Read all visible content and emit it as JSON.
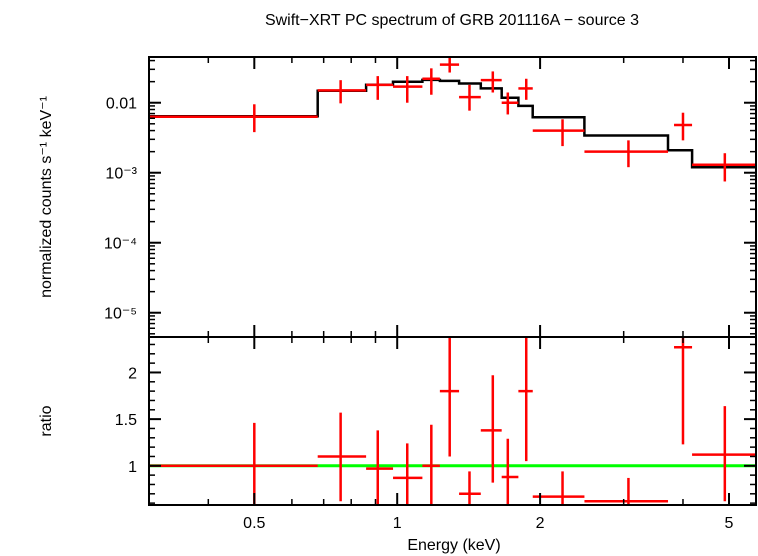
{
  "chart_data": {
    "type": "scatter",
    "title": "Swift−XRT PC spectrum of GRB 201116A − source 3",
    "xlabel": "Energy (keV)",
    "xscale": "log",
    "xlim": [
      0.3,
      5.7
    ],
    "x_tick_labels": [
      {
        "value": 0.5,
        "label": "0.5"
      },
      {
        "value": 1,
        "label": "1"
      },
      {
        "value": 2,
        "label": "2"
      },
      {
        "value": 5,
        "label": "5"
      }
    ],
    "panels": [
      {
        "name": "spectrum",
        "ylabel": "normalized counts s⁻¹ keV⁻¹",
        "yscale": "log",
        "ylim": [
          4.5e-06,
          0.045
        ],
        "y_tick_labels": [
          {
            "value": 0.01,
            "label": "0.01"
          },
          {
            "value": 0.001,
            "label": "10⁻³"
          },
          {
            "value": 0.0001,
            "label": "10⁻⁴"
          },
          {
            "value": 1e-05,
            "label": "10⁻⁵"
          }
        ],
        "series": [
          {
            "name": "data",
            "color": "#ff0000",
            "points": [
              {
                "x": 0.5,
                "xlo": 0.3,
                "xhi": 0.68,
                "y": 0.0063,
                "ylo": 0.0038,
                "yhi": 0.0095
              },
              {
                "x": 0.76,
                "xlo": 0.68,
                "xhi": 0.86,
                "y": 0.015,
                "ylo": 0.0098,
                "yhi": 0.021
              },
              {
                "x": 0.91,
                "xlo": 0.86,
                "xhi": 0.98,
                "y": 0.018,
                "ylo": 0.011,
                "yhi": 0.024
              },
              {
                "x": 1.05,
                "xlo": 0.98,
                "xhi": 1.13,
                "y": 0.017,
                "ylo": 0.01,
                "yhi": 0.024
              },
              {
                "x": 1.18,
                "xlo": 1.13,
                "xhi": 1.23,
                "y": 0.022,
                "ylo": 0.013,
                "yhi": 0.031
              },
              {
                "x": 1.29,
                "xlo": 1.23,
                "xhi": 1.35,
                "y": 0.035,
                "ylo": 0.027,
                "yhi": 0.045
              },
              {
                "x": 1.42,
                "xlo": 1.35,
                "xhi": 1.5,
                "y": 0.012,
                "ylo": 0.0077,
                "yhi": 0.018
              },
              {
                "x": 1.59,
                "xlo": 1.5,
                "xhi": 1.66,
                "y": 0.021,
                "ylo": 0.014,
                "yhi": 0.028
              },
              {
                "x": 1.71,
                "xlo": 1.66,
                "xhi": 1.8,
                "y": 0.01,
                "ylo": 0.0068,
                "yhi": 0.014
              },
              {
                "x": 1.87,
                "xlo": 1.8,
                "xhi": 1.93,
                "y": 0.016,
                "ylo": 0.011,
                "yhi": 0.022
              },
              {
                "x": 2.23,
                "xlo": 1.93,
                "xhi": 2.48,
                "y": 0.004,
                "ylo": 0.0024,
                "yhi": 0.0058
              },
              {
                "x": 3.07,
                "xlo": 2.48,
                "xhi": 3.72,
                "y": 0.002,
                "ylo": 0.0012,
                "yhi": 0.0029
              },
              {
                "x": 4.0,
                "xlo": 3.83,
                "xhi": 4.18,
                "y": 0.0048,
                "ylo": 0.0029,
                "yhi": 0.0072
              },
              {
                "x": 4.9,
                "xlo": 4.18,
                "xhi": 5.7,
                "y": 0.0013,
                "ylo": 0.00075,
                "yhi": 0.0019
              }
            ]
          },
          {
            "name": "model",
            "color": "#000000",
            "steps": [
              {
                "x0": 0.3,
                "x1": 0.68,
                "y": 0.0064
              },
              {
                "x0": 0.68,
                "x1": 0.86,
                "y": 0.0148
              },
              {
                "x0": 0.86,
                "x1": 0.98,
                "y": 0.0181
              },
              {
                "x0": 0.98,
                "x1": 1.13,
                "y": 0.02
              },
              {
                "x0": 1.13,
                "x1": 1.23,
                "y": 0.0212
              },
              {
                "x0": 1.23,
                "x1": 1.35,
                "y": 0.0205
              },
              {
                "x0": 1.35,
                "x1": 1.5,
                "y": 0.0188
              },
              {
                "x0": 1.5,
                "x1": 1.66,
                "y": 0.016
              },
              {
                "x0": 1.66,
                "x1": 1.8,
                "y": 0.0118
              },
              {
                "x0": 1.8,
                "x1": 1.93,
                "y": 0.009
              },
              {
                "x0": 1.93,
                "x1": 2.48,
                "y": 0.0062
              },
              {
                "x0": 2.48,
                "x1": 3.72,
                "y": 0.0034
              },
              {
                "x0": 3.72,
                "x1": 4.18,
                "y": 0.0021
              },
              {
                "x0": 4.18,
                "x1": 5.7,
                "y": 0.0012
              }
            ]
          }
        ]
      },
      {
        "name": "ratio",
        "ylabel": "ratio",
        "yscale": "linear",
        "ylim": [
          0.58,
          2.38
        ],
        "y_tick_labels": [
          {
            "value": 1,
            "label": "1"
          },
          {
            "value": 1.5,
            "label": "1.5"
          },
          {
            "value": 2,
            "label": "2"
          }
        ],
        "reference_line": {
          "y": 1,
          "color": "#00ff00"
        },
        "series": [
          {
            "name": "ratio",
            "color": "#ff0000",
            "points": [
              {
                "x": 0.5,
                "xlo": 0.3,
                "xhi": 0.68,
                "y": 1.0,
                "ylo": 0.57,
                "yhi": 1.46
              },
              {
                "x": 0.76,
                "xlo": 0.68,
                "xhi": 0.86,
                "y": 1.1,
                "ylo": 0.62,
                "yhi": 1.57
              },
              {
                "x": 0.91,
                "xlo": 0.86,
                "xhi": 0.98,
                "y": 0.97,
                "ylo": 0.57,
                "yhi": 1.38
              },
              {
                "x": 1.05,
                "xlo": 0.98,
                "xhi": 1.13,
                "y": 0.87,
                "ylo": 0.52,
                "yhi": 1.24
              },
              {
                "x": 1.18,
                "xlo": 1.13,
                "xhi": 1.23,
                "y": 1.0,
                "ylo": 0.57,
                "yhi": 1.44
              },
              {
                "x": 1.29,
                "xlo": 1.23,
                "xhi": 1.35,
                "y": 1.8,
                "ylo": 1.1,
                "yhi": 2.38
              },
              {
                "x": 1.42,
                "xlo": 1.35,
                "xhi": 1.5,
                "y": 0.7,
                "ylo": 0.47,
                "yhi": 0.94
              },
              {
                "x": 1.59,
                "xlo": 1.5,
                "xhi": 1.66,
                "y": 1.38,
                "ylo": 0.82,
                "yhi": 1.97
              },
              {
                "x": 1.71,
                "xlo": 1.66,
                "xhi": 1.8,
                "y": 0.88,
                "ylo": 0.5,
                "yhi": 1.29
              },
              {
                "x": 1.87,
                "xlo": 1.8,
                "xhi": 1.93,
                "y": 1.8,
                "ylo": 1.05,
                "yhi": 2.38
              },
              {
                "x": 2.23,
                "xlo": 1.93,
                "xhi": 2.48,
                "y": 0.67,
                "ylo": 0.4,
                "yhi": 0.94
              },
              {
                "x": 3.07,
                "xlo": 2.48,
                "xhi": 3.72,
                "y": 0.62,
                "ylo": 0.37,
                "yhi": 0.87
              },
              {
                "x": 4.0,
                "xlo": 3.83,
                "xhi": 4.18,
                "y": 2.27,
                "ylo": 1.23,
                "yhi": 2.38
              },
              {
                "x": 4.9,
                "xlo": 4.18,
                "xhi": 5.7,
                "y": 1.12,
                "ylo": 0.62,
                "yhi": 1.64
              }
            ]
          }
        ]
      }
    ]
  }
}
